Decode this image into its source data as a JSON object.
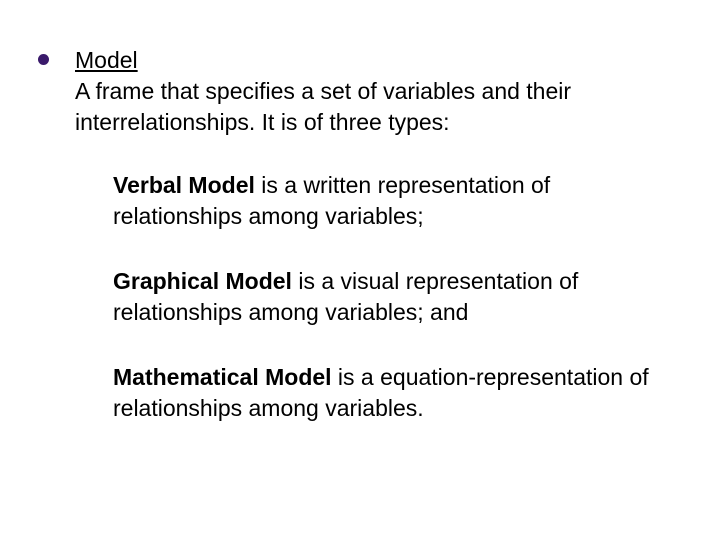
{
  "colors": {
    "bullet": "#3a1a6b",
    "text": "#000000",
    "background": "#ffffff"
  },
  "typography": {
    "font_family": "Arial",
    "body_fontsize": 23,
    "line_height": 1.35
  },
  "main": {
    "heading": "Model",
    "heading_desc": "A frame that specifies a set of variables and their interrelationships. It is of three types:"
  },
  "items": [
    {
      "title": "Verbal Model",
      "desc": " is a written representation of relationships among variables;"
    },
    {
      "title": "Graphical Model",
      "desc": " is a visual representation of relationships among variables; and"
    },
    {
      "title": "Mathematical Model",
      "desc": " is a equation-representation of relationships among variables."
    }
  ]
}
